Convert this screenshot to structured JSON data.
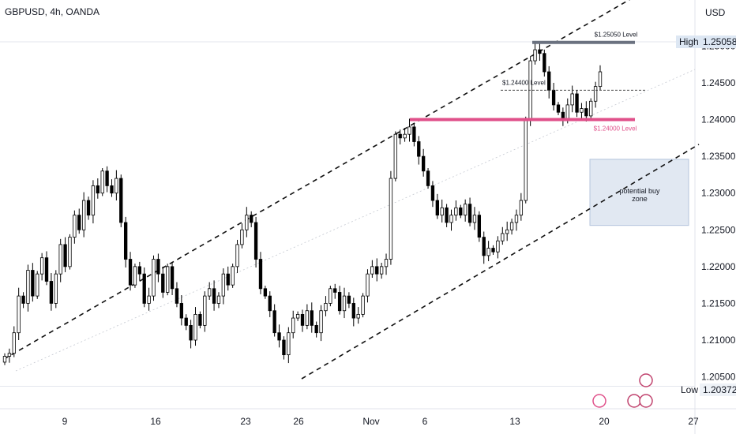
{
  "header": {
    "symbol": "GBPUSD, 4h, OANDA",
    "currency": "USD"
  },
  "markers": {
    "high_label": "High",
    "high_value": "1.25058",
    "low_label": "Low",
    "low_value": "1.20372"
  },
  "colors": {
    "up": "#ffffff",
    "down": "#000000",
    "wick": "#000000",
    "resistance": "#6b7280",
    "support": "#e0508a",
    "zone": "#c9d6e8",
    "axis_text": "#131722"
  },
  "chart_data": {
    "type": "candlestick",
    "title": "GBPUSD, 4h, OANDA",
    "ylim": [
      1.203,
      1.2545
    ],
    "y_ticks": [
      "1.20500",
      "1.21000",
      "1.21500",
      "1.22000",
      "1.22500",
      "1.23000",
      "1.23500",
      "1.24000",
      "1.24500",
      "1.25000"
    ],
    "x_ticks": [
      "9",
      "16",
      "23",
      "26",
      "Nov",
      "6",
      "13",
      "20",
      "27"
    ],
    "levels": [
      {
        "label": "$1.25050 Level",
        "price": 1.2505
      },
      {
        "label": "$1.24400 Level",
        "price": 1.244
      },
      {
        "label": "$1.24000 Level",
        "price": 1.24
      }
    ],
    "zone": {
      "label_line1": "potential buy",
      "label_line2": "zone",
      "top": 1.2346,
      "bottom": 1.2256
    },
    "closes": [
      1.2078,
      1.2082,
      1.211,
      1.216,
      1.215,
      1.2195,
      1.216,
      1.219,
      1.2212,
      1.218,
      1.215,
      1.219,
      1.223,
      1.22,
      1.224,
      1.227,
      1.225,
      1.229,
      1.227,
      1.231,
      1.23,
      1.233,
      1.231,
      1.23,
      1.232,
      1.226,
      1.221,
      1.2175,
      1.22,
      1.219,
      1.215,
      1.216,
      1.221,
      1.219,
      1.2165,
      1.22,
      1.217,
      1.215,
      1.213,
      1.212,
      1.21,
      1.2135,
      1.212,
      1.216,
      1.217,
      1.215,
      1.216,
      1.219,
      1.2175,
      1.22,
      1.223,
      1.225,
      1.227,
      1.226,
      1.221,
      1.217,
      1.216,
      1.214,
      1.211,
      1.21,
      1.208,
      1.211,
      1.213,
      1.2135,
      1.212,
      1.214,
      1.212,
      1.211,
      1.214,
      1.215,
      1.217,
      1.2165,
      1.214,
      1.216,
      1.215,
      1.213,
      1.2135,
      1.216,
      1.219,
      1.22,
      1.219,
      1.22,
      1.221,
      1.232,
      1.238,
      1.2375,
      1.238,
      1.239,
      1.237,
      1.235,
      1.233,
      1.231,
      1.229,
      1.227,
      1.228,
      1.226,
      1.227,
      1.228,
      1.227,
      1.2285,
      1.226,
      1.227,
      1.224,
      1.2215,
      1.2225,
      1.222,
      1.2235,
      1.2245,
      1.225,
      1.226,
      1.227,
      1.229,
      1.24,
      1.248,
      1.2495,
      1.249,
      1.2465,
      1.244,
      1.242,
      1.241,
      1.24,
      1.242,
      1.2435,
      1.241,
      1.2415,
      1.2405,
      1.2425,
      1.2445,
      1.2465
    ]
  }
}
